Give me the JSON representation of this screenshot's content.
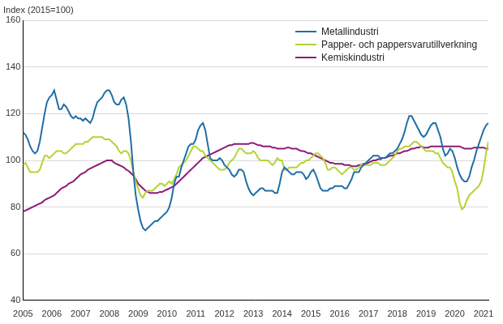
{
  "chart_data": {
    "type": "line",
    "ylabel": "Index (2015=100)",
    "categories": [
      "2005",
      null,
      null,
      null,
      null,
      null,
      null,
      null,
      null,
      null,
      null,
      null,
      "2006",
      null,
      null,
      null,
      null,
      null,
      null,
      null,
      null,
      null,
      null,
      null,
      "2007",
      null,
      null,
      null,
      null,
      null,
      null,
      null,
      null,
      null,
      null,
      null,
      "2008",
      null,
      null,
      null,
      null,
      null,
      null,
      null,
      null,
      null,
      null,
      null,
      "2009",
      null,
      null,
      null,
      null,
      null,
      null,
      null,
      null,
      null,
      null,
      null,
      "2010",
      null,
      null,
      null,
      null,
      null,
      null,
      null,
      null,
      null,
      null,
      null,
      "2011",
      null,
      null,
      null,
      null,
      null,
      null,
      null,
      null,
      null,
      null,
      null,
      "2012",
      null,
      null,
      null,
      null,
      null,
      null,
      null,
      null,
      null,
      null,
      null,
      "2013",
      null,
      null,
      null,
      null,
      null,
      null,
      null,
      null,
      null,
      null,
      null,
      "2014",
      null,
      null,
      null,
      null,
      null,
      null,
      null,
      null,
      null,
      null,
      null,
      "2015",
      null,
      null,
      null,
      null,
      null,
      null,
      null,
      null,
      null,
      null,
      null,
      "2016",
      null,
      null,
      null,
      null,
      null,
      null,
      null,
      null,
      null,
      null,
      null,
      "2017",
      null,
      null,
      null,
      null,
      null,
      null,
      null,
      null,
      null,
      null,
      null,
      "2018",
      null,
      null,
      null,
      null,
      null,
      null,
      null,
      null,
      null,
      null,
      null,
      "2019",
      null,
      null,
      null,
      null,
      null,
      null,
      null,
      null,
      null,
      null,
      null,
      "2020",
      null,
      null,
      null,
      null,
      null,
      null,
      null,
      null,
      null,
      null,
      null,
      "2021",
      null,
      null
    ],
    "series": [
      {
        "name": "Metallindustri",
        "color": "#1f6fa6",
        "values": [
          112,
          111,
          109,
          106,
          104,
          103,
          104,
          108,
          114,
          120,
          125,
          127,
          128,
          130,
          126,
          122,
          122,
          124,
          123,
          121,
          119,
          118,
          119,
          118,
          118,
          117,
          118,
          117,
          116,
          118,
          122,
          125,
          126,
          127,
          129,
          130,
          130,
          128,
          125,
          124,
          124,
          126,
          127,
          124,
          118,
          108,
          95,
          85,
          79,
          74,
          71,
          70,
          71,
          72,
          73,
          74,
          74,
          75,
          76,
          77,
          78,
          80,
          84,
          90,
          93,
          93,
          97,
          100,
          103,
          106,
          107,
          107,
          109,
          113,
          115,
          116,
          113,
          107,
          101,
          100,
          100,
          100,
          101,
          100,
          98,
          97,
          96,
          94,
          93,
          94,
          96,
          96,
          95,
          91,
          88,
          86,
          85,
          86,
          87,
          88,
          88,
          87,
          87,
          87,
          87,
          86,
          86,
          90,
          95,
          97,
          96,
          95,
          94,
          94,
          95,
          95,
          95,
          94,
          92,
          93,
          95,
          96,
          94,
          91,
          88,
          87,
          87,
          87,
          88,
          88,
          89,
          89,
          89,
          89,
          88,
          88,
          90,
          92,
          95,
          95,
          95,
          97,
          98,
          99,
          100,
          101,
          102,
          102,
          102,
          101,
          101,
          101,
          102,
          103,
          103,
          104,
          105,
          107,
          109,
          112,
          116,
          119,
          119,
          117,
          115,
          113,
          111,
          110,
          111,
          113,
          115,
          116,
          116,
          113,
          110,
          105,
          102,
          103,
          105,
          104,
          101,
          97,
          94,
          92,
          91,
          91,
          93,
          97,
          100,
          104,
          107,
          110,
          113,
          115,
          116
        ]
      },
      {
        "name": "Papper- och pappersvarutillverkning",
        "color": "#b5d334",
        "values": [
          98,
          99,
          97,
          95,
          95,
          95,
          95,
          96,
          99,
          102,
          102,
          101,
          102,
          103,
          104,
          104,
          104,
          103,
          103,
          104,
          105,
          106,
          107,
          107,
          107,
          107,
          108,
          108,
          109,
          110,
          110,
          110,
          110,
          110,
          109,
          109,
          109,
          108,
          107,
          106,
          104,
          103,
          104,
          104,
          103,
          100,
          95,
          91,
          88,
          85,
          84,
          86,
          87,
          87,
          87,
          88,
          89,
          90,
          90,
          89,
          90,
          91,
          90,
          92,
          94,
          97,
          98,
          99,
          100,
          102,
          104,
          106,
          106,
          105,
          104,
          104,
          102,
          101,
          100,
          99,
          98,
          97,
          96,
          96,
          96,
          97,
          99,
          100,
          101,
          103,
          105,
          105,
          104,
          103,
          103,
          103,
          104,
          103,
          101,
          100,
          100,
          100,
          100,
          99,
          98,
          99,
          101,
          100,
          100,
          96,
          96,
          97,
          97,
          97,
          97,
          98,
          99,
          99,
          100,
          100,
          101,
          102,
          103,
          103,
          102,
          101,
          99,
          96,
          96,
          97,
          97,
          96,
          95,
          94,
          95,
          96,
          97,
          97,
          96,
          96,
          97,
          98,
          98,
          98,
          98,
          98,
          99,
          99,
          99,
          98,
          98,
          98,
          99,
          100,
          101,
          102,
          104,
          105,
          105,
          106,
          106,
          106,
          107,
          108,
          108,
          107,
          106,
          105,
          104,
          104,
          104,
          104,
          103,
          103,
          101,
          99,
          98,
          97,
          97,
          95,
          91,
          88,
          82,
          79,
          80,
          83,
          85,
          86,
          87,
          88,
          89,
          91,
          96,
          103,
          108
        ]
      },
      {
        "name": "Kemiskindustri",
        "color": "#8e1a78",
        "values": [
          78,
          78.5,
          79,
          79.5,
          80,
          80.5,
          81,
          81.5,
          82,
          83,
          83.5,
          84,
          84.5,
          85,
          86,
          87,
          88,
          88.5,
          89,
          90,
          90.5,
          91,
          92,
          93,
          94,
          94.5,
          95,
          96,
          96.5,
          97,
          97.5,
          98,
          98.5,
          99,
          99.5,
          100,
          100,
          100,
          99,
          98.5,
          98,
          97.5,
          97,
          96,
          95.5,
          94.5,
          93.5,
          92,
          90,
          89,
          88,
          87,
          86.5,
          86,
          86,
          86,
          86,
          86.5,
          86.5,
          87,
          87.5,
          88,
          88.5,
          89,
          90,
          91,
          92,
          93,
          94,
          95,
          96,
          97,
          98,
          99,
          100,
          101,
          101.5,
          102,
          102.5,
          103,
          103.5,
          104,
          104.5,
          105,
          105.5,
          106,
          106.5,
          106.5,
          107,
          107,
          107,
          107,
          107,
          107,
          107,
          107.5,
          107.5,
          107,
          106.5,
          106.5,
          106,
          106,
          106,
          106,
          105.5,
          105.5,
          105,
          105,
          105,
          105,
          105.5,
          105.5,
          105,
          105,
          105,
          104.5,
          104,
          104,
          103.5,
          103,
          103,
          102.5,
          102,
          101.5,
          101,
          100.5,
          100,
          99.5,
          99,
          99,
          98.5,
          98.5,
          98.5,
          98.5,
          98,
          98,
          98,
          97.5,
          97.5,
          97.5,
          98,
          98,
          98.5,
          98.5,
          99,
          99.5,
          100,
          100,
          100.5,
          100.5,
          101,
          101,
          101.5,
          102,
          102,
          102.5,
          103,
          103,
          103.5,
          104,
          104,
          104.5,
          105,
          105,
          105.5,
          105.5,
          106,
          105.5,
          105.5,
          105.5,
          106,
          106,
          106,
          106,
          106,
          106,
          106,
          106,
          106,
          106,
          106,
          106,
          106,
          105.5,
          105,
          105,
          105,
          105,
          105.5,
          105.5,
          105.5,
          105.5,
          105.5,
          105,
          105
        ]
      }
    ],
    "ylim": [
      40,
      160
    ],
    "yticks": [
      40,
      60,
      80,
      100,
      120,
      140,
      160
    ],
    "grid": true,
    "legend": "upper right"
  }
}
